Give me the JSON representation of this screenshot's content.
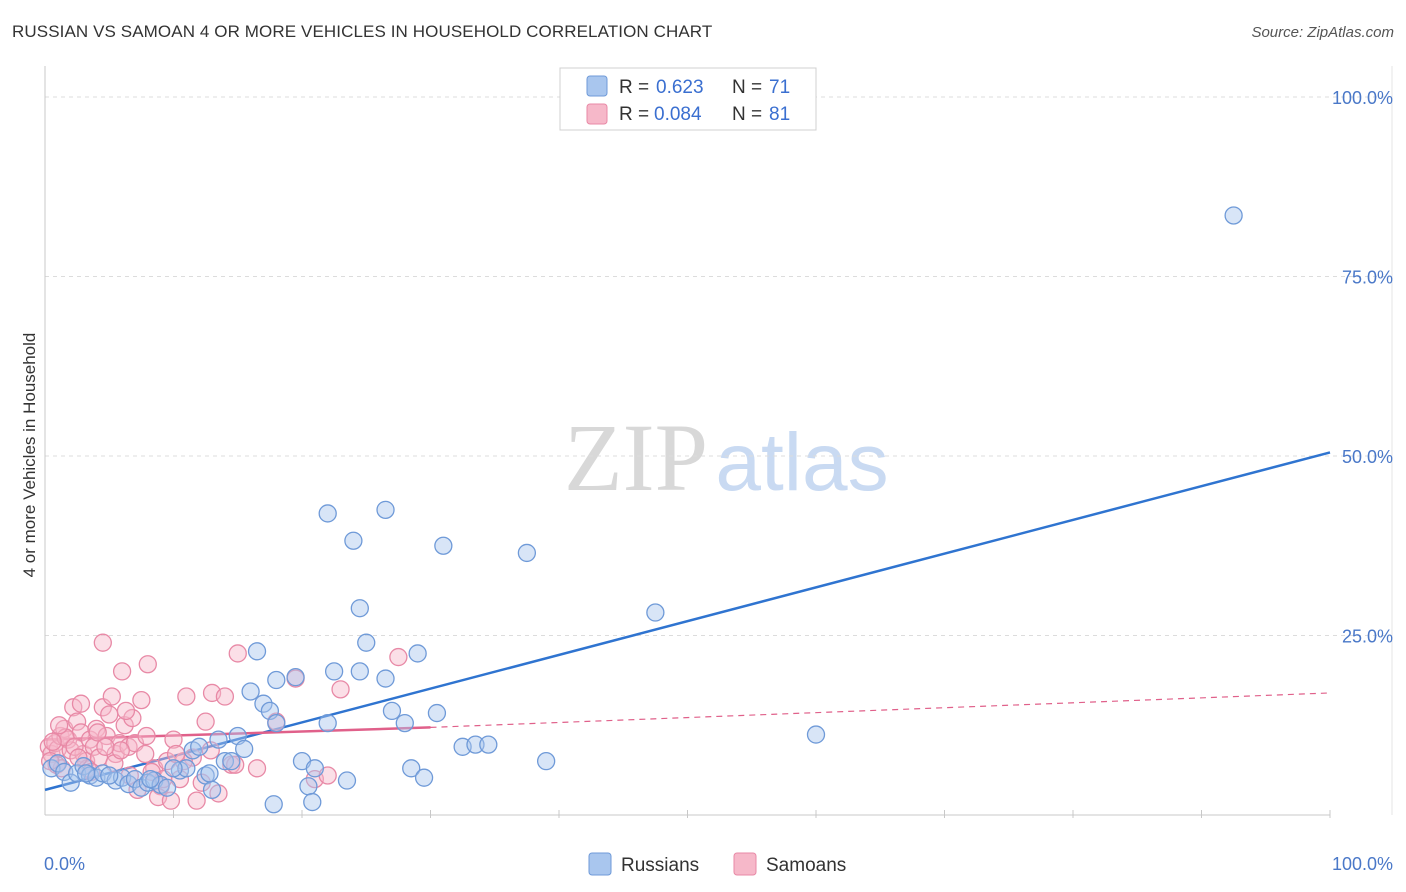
{
  "title": "RUSSIAN VS SAMOAN 4 OR MORE VEHICLES IN HOUSEHOLD CORRELATION CHART",
  "source": "Source: ZipAtlas.com",
  "watermark": {
    "zip": "ZIP",
    "atlas": "atlas"
  },
  "colors": {
    "russians_fill": "#a9c6ee",
    "russians_stroke": "#6f9ad8",
    "russians_line": "#2f74d0",
    "samoans_fill": "#f6b8c9",
    "samoans_stroke": "#e889a6",
    "samoans_line": "#e0608a",
    "tick_label": "#4a78c8",
    "grid": "#dcdcdc"
  },
  "legend": {
    "entries": [
      {
        "r_label": "R =",
        "r_value": "0.623",
        "n_label": "N =",
        "n_value": "71"
      },
      {
        "r_label": "R =",
        "r_value": "0.084",
        "n_label": "N =",
        "n_value": "81"
      }
    ]
  },
  "chart_data": {
    "type": "scatter",
    "title": "RUSSIAN VS SAMOAN 4 OR MORE VEHICLES IN HOUSEHOLD CORRELATION CHART",
    "xlabel": "",
    "ylabel": "4 or more Vehicles in Household",
    "xlim": [
      0,
      100
    ],
    "ylim": [
      0,
      105
    ],
    "x_tick_labels": [
      "0.0%",
      "100.0%"
    ],
    "y_ticks": [
      25,
      50,
      75,
      100
    ],
    "y_tick_labels": [
      "25.0%",
      "50.0%",
      "75.0%",
      "100.0%"
    ],
    "grid": true,
    "legend_position": "top-center",
    "series": [
      {
        "name": "Russians",
        "r": 0.623,
        "n": 71,
        "trend": {
          "x0": 0,
          "y0": 3.5,
          "x1": 100,
          "y1": 50.5,
          "style": "solid"
        },
        "points": [
          [
            0.5,
            6.5
          ],
          [
            1.0,
            7.2
          ],
          [
            1.5,
            6.0
          ],
          [
            2.0,
            4.5
          ],
          [
            2.5,
            5.8
          ],
          [
            3.0,
            6.8
          ],
          [
            3.5,
            5.5
          ],
          [
            4.0,
            5.2
          ],
          [
            4.5,
            5.8
          ],
          [
            5.5,
            4.8
          ],
          [
            6.0,
            5.2
          ],
          [
            6.5,
            4.3
          ],
          [
            7.0,
            5.0
          ],
          [
            7.5,
            3.8
          ],
          [
            8.0,
            4.5
          ],
          [
            8.5,
            4.8
          ],
          [
            9.0,
            4.2
          ],
          [
            9.5,
            3.8
          ],
          [
            10.5,
            6.2
          ],
          [
            11.0,
            6.5
          ],
          [
            11.5,
            9.0
          ],
          [
            12.0,
            9.5
          ],
          [
            12.5,
            5.5
          ],
          [
            13.0,
            3.5
          ],
          [
            13.5,
            10.5
          ],
          [
            14.0,
            7.5
          ],
          [
            14.5,
            7.5
          ],
          [
            15.0,
            11.0
          ],
          [
            15.5,
            9.2
          ],
          [
            16.0,
            17.2
          ],
          [
            16.5,
            22.8
          ],
          [
            17.0,
            15.5
          ],
          [
            17.5,
            14.5
          ],
          [
            18.0,
            12.8
          ],
          [
            19.5,
            19.2
          ],
          [
            20.0,
            7.5
          ],
          [
            20.5,
            4.0
          ],
          [
            21.0,
            6.5
          ],
          [
            22.0,
            12.8
          ],
          [
            22.5,
            20.0
          ],
          [
            23.5,
            4.8
          ],
          [
            24.5,
            20.0
          ],
          [
            25.0,
            24.0
          ],
          [
            26.5,
            19.0
          ],
          [
            27.0,
            14.5
          ],
          [
            28.0,
            12.8
          ],
          [
            28.5,
            6.5
          ],
          [
            29.0,
            22.5
          ],
          [
            29.5,
            5.2
          ],
          [
            30.5,
            14.2
          ],
          [
            32.5,
            9.5
          ],
          [
            33.5,
            9.8
          ],
          [
            34.5,
            9.8
          ],
          [
            37.5,
            36.5
          ],
          [
            39.0,
            7.5
          ],
          [
            47.5,
            28.2
          ],
          [
            60.0,
            11.2
          ],
          [
            92.5,
            83.5
          ],
          [
            22.0,
            42.0
          ],
          [
            24.0,
            38.2
          ],
          [
            26.5,
            42.5
          ],
          [
            31.0,
            37.5
          ],
          [
            24.5,
            28.8
          ],
          [
            18.0,
            18.8
          ],
          [
            10.0,
            6.5
          ],
          [
            5.0,
            5.5
          ],
          [
            3.2,
            5.8
          ],
          [
            12.8,
            5.8
          ],
          [
            17.8,
            1.5
          ],
          [
            20.8,
            1.8
          ],
          [
            8.2,
            5.0
          ]
        ]
      },
      {
        "name": "Samoans",
        "r": 0.084,
        "n": 81,
        "trend": {
          "x0": 0,
          "y0": 10.5,
          "x1": 30,
          "y1": 12.2,
          "x_ext": 100,
          "y_ext": 17.0,
          "style": "solid-then-dashed"
        },
        "points": [
          [
            0.3,
            9.5
          ],
          [
            0.5,
            8.5
          ],
          [
            0.8,
            10.0
          ],
          [
            1.0,
            9.2
          ],
          [
            1.2,
            11.0
          ],
          [
            1.5,
            12.0
          ],
          [
            1.8,
            10.5
          ],
          [
            2.0,
            9.0
          ],
          [
            2.2,
            15.0
          ],
          [
            2.5,
            13.0
          ],
          [
            2.8,
            11.5
          ],
          [
            3.0,
            8.5
          ],
          [
            3.2,
            7.5
          ],
          [
            3.5,
            10.5
          ],
          [
            3.8,
            9.5
          ],
          [
            4.0,
            12.0
          ],
          [
            4.2,
            8.0
          ],
          [
            4.5,
            15.0
          ],
          [
            4.8,
            11.0
          ],
          [
            5.0,
            14.0
          ],
          [
            5.2,
            16.5
          ],
          [
            5.5,
            8.5
          ],
          [
            5.8,
            10.0
          ],
          [
            6.0,
            20.0
          ],
          [
            6.2,
            12.5
          ],
          [
            6.5,
            9.5
          ],
          [
            6.8,
            13.5
          ],
          [
            7.0,
            10.0
          ],
          [
            7.5,
            16.0
          ],
          [
            7.8,
            8.5
          ],
          [
            8.0,
            21.0
          ],
          [
            8.5,
            6.5
          ],
          [
            9.0,
            4.0
          ],
          [
            9.5,
            7.5
          ],
          [
            10.0,
            10.5
          ],
          [
            10.5,
            5.0
          ],
          [
            11.0,
            16.5
          ],
          [
            11.5,
            8.0
          ],
          [
            12.5,
            13.0
          ],
          [
            13.0,
            17.0
          ],
          [
            13.5,
            3.0
          ],
          [
            14.0,
            16.5
          ],
          [
            14.5,
            7.0
          ],
          [
            15.0,
            22.5
          ],
          [
            16.5,
            6.5
          ],
          [
            18.0,
            13.0
          ],
          [
            19.5,
            19.0
          ],
          [
            21.0,
            5.0
          ],
          [
            22.0,
            5.5
          ],
          [
            23.0,
            17.5
          ],
          [
            27.5,
            22.0
          ],
          [
            4.5,
            24.0
          ],
          [
            2.8,
            15.5
          ],
          [
            1.6,
            10.8
          ],
          [
            0.9,
            7.0
          ],
          [
            3.3,
            6.5
          ],
          [
            5.4,
            7.2
          ],
          [
            6.6,
            5.5
          ],
          [
            7.2,
            3.5
          ],
          [
            8.8,
            2.5
          ],
          [
            9.8,
            2.0
          ],
          [
            10.8,
            7.5
          ],
          [
            11.8,
            2.0
          ],
          [
            12.2,
            4.5
          ],
          [
            2.3,
            9.5
          ],
          [
            1.1,
            12.5
          ],
          [
            0.6,
            10.2
          ],
          [
            4.1,
            11.5
          ],
          [
            5.9,
            9.0
          ],
          [
            3.6,
            6.0
          ],
          [
            2.6,
            8.0
          ],
          [
            1.3,
            6.5
          ],
          [
            7.9,
            11.0
          ],
          [
            9.2,
            5.0
          ],
          [
            6.3,
            14.5
          ],
          [
            4.7,
            9.5
          ],
          [
            0.4,
            7.5
          ],
          [
            8.3,
            6.0
          ],
          [
            10.2,
            8.5
          ],
          [
            12.9,
            9.0
          ],
          [
            14.8,
            7.0
          ]
        ]
      }
    ],
    "bottom_legend": [
      "Russians",
      "Samoans"
    ]
  }
}
